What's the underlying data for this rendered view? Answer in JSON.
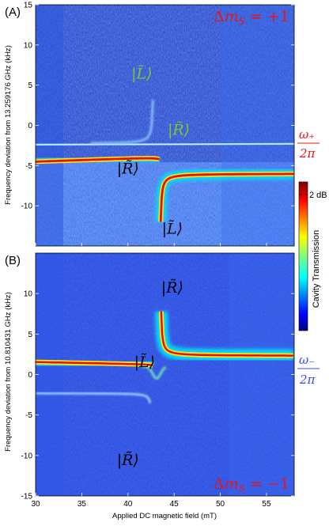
{
  "chart_data": [
    {
      "type": "heatmap",
      "panel_label": "(A)",
      "ylabel": "Frequency deviation from 13.259176 GHz (kHz)",
      "ylim": [
        -15,
        15
      ],
      "yticks": [
        "15",
        "10",
        "5",
        "0",
        "-5",
        "-10"
      ],
      "ytick_values": [
        15,
        10,
        5,
        0,
        -5,
        -10
      ],
      "xlim": [
        30,
        58
      ],
      "transition_label": "Δm_S = +1",
      "mode_label": {
        "num": "ω₊",
        "den": "2π",
        "color": "#e8141b"
      },
      "state_labels": [
        {
          "text": "|L̃⟩",
          "color": "#7cc832",
          "x": 41.5,
          "y": 6.5
        },
        {
          "text": "|R̃⟩",
          "color": "#7cc832",
          "x": 45.5,
          "y": -0.5
        },
        {
          "text": "|R̃⟩",
          "color": "#000000",
          "x": 40.0,
          "y": -5.3
        },
        {
          "text": "|L̃⟩",
          "color": "#000000",
          "x": 44.8,
          "y": -12.8
        }
      ],
      "features": [
        {
          "name": "horizontal cavity line",
          "y_left": -2.4,
          "y_right": -2.3
        },
        {
          "name": "upper hybrid branch",
          "x": [
            38,
            41,
            42,
            42.6
          ],
          "y": [
            -2.3,
            -1.2,
            2,
            9
          ]
        },
        {
          "name": "lower hybrid branch (strong)",
          "x": [
            30,
            40,
            43,
            44,
            46,
            50,
            58
          ],
          "y": [
            -4.5,
            -4.3,
            -4.0,
            -12,
            -7,
            -6.2,
            -6.0
          ]
        }
      ]
    },
    {
      "type": "heatmap",
      "panel_label": "(B)",
      "ylabel": "Frequency deviation from 10.810431 GHz (kHz)",
      "xlabel": "Applied DC magnetic field (mT)",
      "ylim": [
        -15,
        15
      ],
      "yticks": [
        "10",
        "5",
        "0",
        "-5",
        "-10",
        "-15"
      ],
      "ytick_values": [
        10,
        5,
        0,
        -5,
        -10,
        -15
      ],
      "xlim": [
        30,
        58
      ],
      "xticks": [
        "30",
        "35",
        "40",
        "45",
        "50",
        "55"
      ],
      "xtick_values": [
        30,
        35,
        40,
        45,
        50,
        55
      ],
      "transition_label": "Δm_S = −1",
      "mode_label": {
        "num": "ω₋",
        "den": "2π",
        "color": "#3848ff"
      },
      "state_labels": [
        {
          "text": "|R̃⟩",
          "color": "#000000",
          "x": 44.8,
          "y": 10.8
        },
        {
          "text": "|L̃⟩",
          "color": "#000000",
          "x": 41.8,
          "y": 1.6
        },
        {
          "text": "|R̃⟩",
          "color": "#000000",
          "x": 40.0,
          "y": -10.5
        }
      ],
      "features": [
        {
          "name": "strong cavity line",
          "x": [
            30,
            40,
            42.5,
            44,
            45,
            48,
            58
          ],
          "y": [
            1.5,
            1.3,
            1.0,
            4.5,
            3.0,
            2.4,
            2.3
          ]
        },
        {
          "name": "weak lower line",
          "x": [
            30,
            38,
            41,
            42.2
          ],
          "y": [
            -2.3,
            -2.6,
            -4.5,
            -12
          ]
        }
      ]
    }
  ],
  "colorbar": {
    "label": "Cavity Transmission",
    "tick": "2 dB",
    "colors": [
      "#00007f",
      "#0000ff",
      "#007fff",
      "#00ffff",
      "#7fff7f",
      "#ffff00",
      "#ff7f00",
      "#ff0000",
      "#7f0000"
    ]
  }
}
